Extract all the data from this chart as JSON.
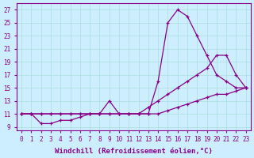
{
  "xlabel": "Windchill (Refroidissement éolien,°C)",
  "bg_color": "#cceeff",
  "line_color": "#880088",
  "grid_color": "#aadddd",
  "series1_x": [
    0,
    1,
    2,
    3,
    4,
    5,
    6,
    7,
    8,
    9,
    10,
    11,
    12,
    13,
    14,
    15,
    16,
    17,
    18,
    19,
    20,
    21,
    22,
    23
  ],
  "series1_y": [
    11,
    11,
    9.5,
    9.5,
    10,
    10,
    10.5,
    11,
    11,
    13,
    11,
    11,
    11,
    11,
    16,
    25,
    27,
    26,
    23,
    20,
    17,
    16,
    15,
    15
  ],
  "series2_x": [
    0,
    1,
    2,
    3,
    4,
    5,
    6,
    7,
    8,
    9,
    10,
    11,
    12,
    13,
    14,
    15,
    16,
    17,
    18,
    19,
    20,
    21,
    22,
    23
  ],
  "series2_y": [
    11,
    11,
    11,
    11,
    11,
    11,
    11,
    11,
    11,
    11,
    11,
    11,
    11,
    12,
    13,
    14,
    15,
    16,
    17,
    18,
    20,
    20,
    17,
    15
  ],
  "series3_x": [
    0,
    1,
    2,
    3,
    4,
    5,
    6,
    7,
    8,
    9,
    10,
    11,
    12,
    13,
    14,
    15,
    16,
    17,
    18,
    19,
    20,
    21,
    22,
    23
  ],
  "series3_y": [
    11,
    11,
    11,
    11,
    11,
    11,
    11,
    11,
    11,
    11,
    11,
    11,
    11,
    11,
    11,
    11.5,
    12,
    12.5,
    13,
    13.5,
    14,
    14,
    14.5,
    15
  ],
  "xlim": [
    -0.5,
    23.5
  ],
  "ylim": [
    8.5,
    28
  ],
  "yticks": [
    9,
    11,
    13,
    15,
    17,
    19,
    21,
    23,
    25,
    27
  ],
  "xticks": [
    0,
    1,
    2,
    3,
    4,
    5,
    6,
    7,
    8,
    9,
    10,
    11,
    12,
    13,
    14,
    15,
    16,
    17,
    18,
    19,
    20,
    21,
    22,
    23
  ],
  "tick_fontsize": 5.5,
  "xlabel_fontsize": 6.5,
  "marker": "+"
}
